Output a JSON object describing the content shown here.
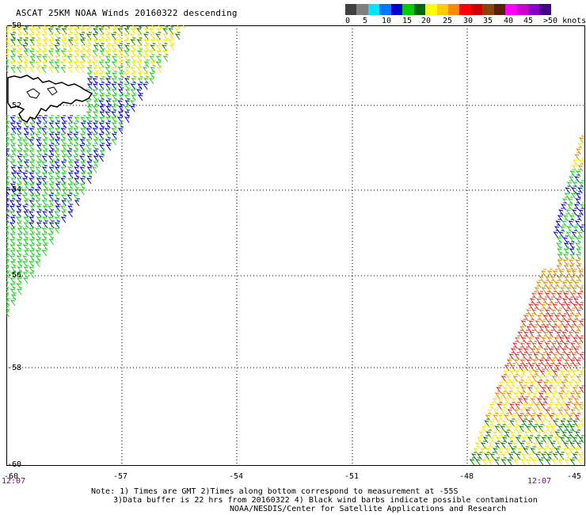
{
  "title": "ASCAT 25KM NOAA Winds 20160322 descending",
  "colorbar": {
    "colors": [
      "#404040",
      "#7f7f7f",
      "#00e5ff",
      "#0077ff",
      "#0000cc",
      "#00cc00",
      "#006600",
      "#ffff00",
      "#ffcc00",
      "#ff8800",
      "#ff0000",
      "#cc0000",
      "#884400",
      "#552200",
      "#ff00ff",
      "#cc00cc",
      "#8800cc",
      "#440088"
    ],
    "labels": [
      "0",
      "5",
      "10",
      "15",
      "20",
      "25",
      "30",
      "35",
      "40",
      "45",
      ">50 knots"
    ]
  },
  "map": {
    "lat_labels": [
      "-50",
      "-52",
      "-54",
      "-56",
      "-58",
      "-60"
    ],
    "lon_labels": [
      "-60",
      "-57",
      "-54",
      "-51",
      "-48",
      "-45"
    ],
    "time_labels": [
      "12:07",
      "12:07"
    ],
    "grid": true,
    "land": "coastline outline (black)"
  },
  "notes": [
    "Note: 1) Times are GMT 2)Times along bottom correspond to measurement at -55S",
    "3)Data buffer is 22 hrs from 20160322 4) Black wind barbs indicate possible contamination",
    "NOAA/NESDIS/Center for Satellite Applications and Research"
  ]
}
